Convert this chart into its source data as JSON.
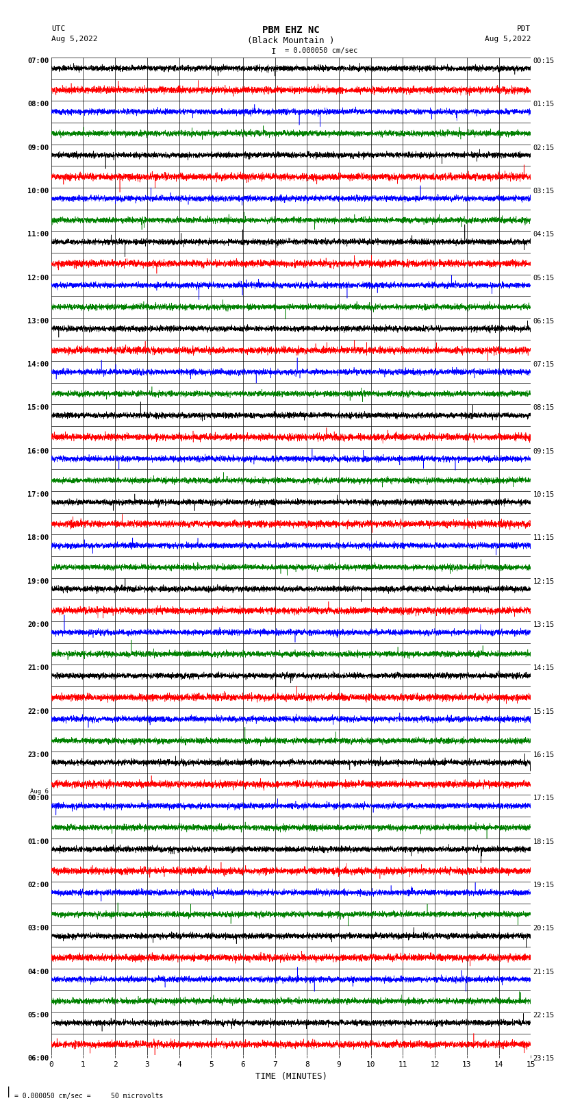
{
  "title_line1": "PBM EHZ NC",
  "title_line2": "(Black Mountain )",
  "scale_text": "I = 0.000050 cm/sec",
  "utc_label": "UTC",
  "utc_date": "Aug 5,2022",
  "pdt_label": "PDT",
  "pdt_date": "Aug 5,2022",
  "xlabel": "TIME (MINUTES)",
  "bottom_note": "= 0.000050 cm/sec =     50 microvolts",
  "xmin": 0,
  "xmax": 15,
  "xticks": [
    0,
    1,
    2,
    3,
    4,
    5,
    6,
    7,
    8,
    9,
    10,
    11,
    12,
    13,
    14,
    15
  ],
  "num_rows": 46,
  "fig_width": 8.5,
  "fig_height": 16.13,
  "bg_color": "#ffffff",
  "colors_cycle": [
    "#000000",
    "#ff0000",
    "#0000ff",
    "#008000"
  ],
  "utc_hour_labels": [
    "07:00",
    "08:00",
    "09:00",
    "10:00",
    "11:00",
    "12:00",
    "13:00",
    "14:00",
    "15:00",
    "16:00",
    "17:00",
    "18:00",
    "19:00",
    "20:00",
    "21:00",
    "22:00",
    "23:00",
    "00:00",
    "01:00",
    "02:00",
    "03:00",
    "04:00",
    "05:00",
    "06:00"
  ],
  "aug6_row_index": 17,
  "pdt_hour_labels": [
    "00:15",
    "01:15",
    "02:15",
    "03:15",
    "04:15",
    "05:15",
    "06:15",
    "07:15",
    "08:15",
    "09:15",
    "10:15",
    "11:15",
    "12:15",
    "13:15",
    "14:15",
    "15:15",
    "16:15",
    "17:15",
    "18:15",
    "19:15",
    "20:15",
    "21:15",
    "22:15",
    "23:15"
  ],
  "noise_seed": 42,
  "noise_amplitude": 0.06,
  "spike_amplitude": 0.25,
  "spike_prob": 0.003
}
